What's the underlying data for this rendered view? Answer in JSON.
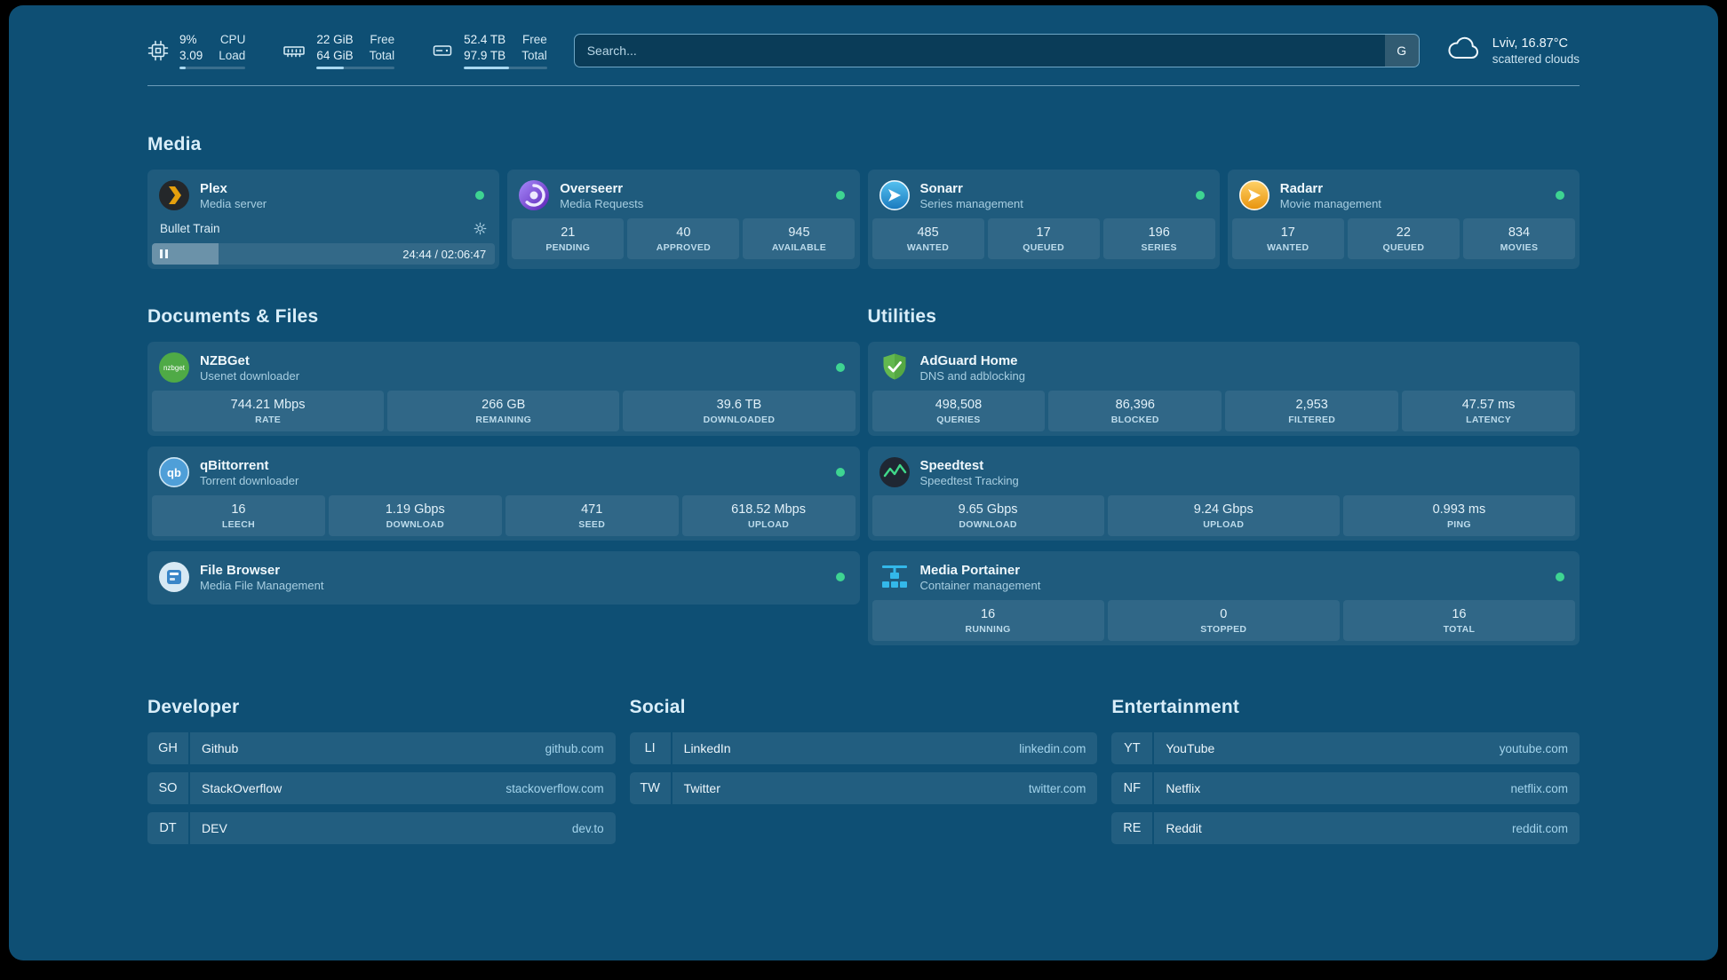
{
  "colors": {
    "background": "#0e4f74",
    "status_online": "#3ed492",
    "accent": "#a8d8f0"
  },
  "topbar": {
    "resources": [
      {
        "icon": "cpu-icon",
        "rows": [
          {
            "value": "9%",
            "label": "CPU"
          },
          {
            "value": "3.09",
            "label": "Load"
          }
        ],
        "percent": 9
      },
      {
        "icon": "memory-icon",
        "rows": [
          {
            "value": "22 GiB",
            "label": "Free"
          },
          {
            "value": "64 GiB",
            "label": "Total"
          }
        ],
        "percent": 35
      },
      {
        "icon": "disk-icon",
        "rows": [
          {
            "value": "52.4 TB",
            "label": "Free"
          },
          {
            "value": "97.9 TB",
            "label": "Total"
          }
        ],
        "percent": 54
      }
    ],
    "search": {
      "placeholder": "Search...",
      "provider_label": "G"
    },
    "weather": {
      "location": "Lviv, 16.87°C",
      "condition": "scattered clouds"
    }
  },
  "sections": {
    "media": {
      "title": "Media",
      "plex": {
        "name": "Plex",
        "subtitle": "Media server",
        "now_playing": "Bullet Train",
        "time": "24:44 / 02:06:47",
        "progress_percent": 19.5
      },
      "cards": [
        {
          "name": "Overseerr",
          "subtitle": "Media Requests",
          "stats": [
            {
              "value": "21",
              "label": "PENDING"
            },
            {
              "value": "40",
              "label": "APPROVED"
            },
            {
              "value": "945",
              "label": "AVAILABLE"
            }
          ]
        },
        {
          "name": "Sonarr",
          "subtitle": "Series management",
          "stats": [
            {
              "value": "485",
              "label": "WANTED"
            },
            {
              "value": "17",
              "label": "QUEUED"
            },
            {
              "value": "196",
              "label": "SERIES"
            }
          ]
        },
        {
          "name": "Radarr",
          "subtitle": "Movie management",
          "stats": [
            {
              "value": "17",
              "label": "WANTED"
            },
            {
              "value": "22",
              "label": "QUEUED"
            },
            {
              "value": "834",
              "label": "MOVIES"
            }
          ]
        }
      ]
    },
    "documents": {
      "title": "Documents & Files",
      "cards": [
        {
          "name": "NZBGet",
          "subtitle": "Usenet downloader",
          "stats": [
            {
              "value": "744.21 Mbps",
              "label": "RATE"
            },
            {
              "value": "266 GB",
              "label": "REMAINING"
            },
            {
              "value": "39.6 TB",
              "label": "DOWNLOADED"
            }
          ]
        },
        {
          "name": "qBittorrent",
          "subtitle": "Torrent downloader",
          "stats": [
            {
              "value": "16",
              "label": "LEECH"
            },
            {
              "value": "1.19 Gbps",
              "label": "DOWNLOAD"
            },
            {
              "value": "471",
              "label": "SEED"
            },
            {
              "value": "618.52 Mbps",
              "label": "UPLOAD"
            }
          ]
        },
        {
          "name": "File Browser",
          "subtitle": "Media File Management",
          "stats": []
        }
      ]
    },
    "utilities": {
      "title": "Utilities",
      "cards": [
        {
          "name": "AdGuard Home",
          "subtitle": "DNS and adblocking",
          "stats": [
            {
              "value": "498,508",
              "label": "QUERIES"
            },
            {
              "value": "86,396",
              "label": "BLOCKED"
            },
            {
              "value": "2,953",
              "label": "FILTERED"
            },
            {
              "value": "47.57 ms",
              "label": "LATENCY"
            }
          ]
        },
        {
          "name": "Speedtest",
          "subtitle": "Speedtest Tracking",
          "stats": [
            {
              "value": "9.65 Gbps",
              "label": "DOWNLOAD"
            },
            {
              "value": "9.24 Gbps",
              "label": "UPLOAD"
            },
            {
              "value": "0.993 ms",
              "label": "PING"
            }
          ]
        },
        {
          "name": "Media Portainer",
          "subtitle": "Container management",
          "stats": [
            {
              "value": "16",
              "label": "RUNNING"
            },
            {
              "value": "0",
              "label": "STOPPED"
            },
            {
              "value": "16",
              "label": "TOTAL"
            }
          ]
        }
      ]
    }
  },
  "bookmarks": {
    "groups": [
      {
        "title": "Developer",
        "links": [
          {
            "abbr": "GH",
            "name": "Github",
            "url": "github.com"
          },
          {
            "abbr": "SO",
            "name": "StackOverflow",
            "url": "stackoverflow.com"
          },
          {
            "abbr": "DT",
            "name": "DEV",
            "url": "dev.to"
          }
        ]
      },
      {
        "title": "Social",
        "links": [
          {
            "abbr": "LI",
            "name": "LinkedIn",
            "url": "linkedin.com"
          },
          {
            "abbr": "TW",
            "name": "Twitter",
            "url": "twitter.com"
          }
        ]
      },
      {
        "title": "Entertainment",
        "links": [
          {
            "abbr": "YT",
            "name": "YouTube",
            "url": "youtube.com"
          },
          {
            "abbr": "NF",
            "name": "Netflix",
            "url": "netflix.com"
          },
          {
            "abbr": "RE",
            "name": "Reddit",
            "url": "reddit.com"
          }
        ]
      }
    ]
  }
}
